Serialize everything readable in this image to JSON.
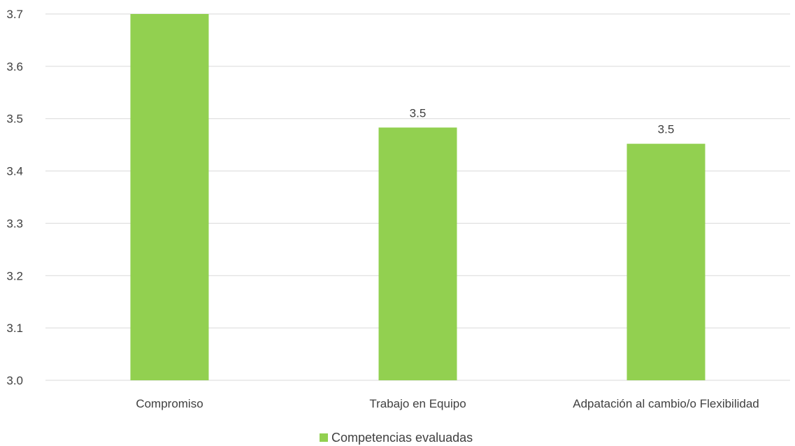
{
  "chart_data": {
    "type": "bar",
    "categories": [
      "Compromiso",
      "Trabajo en Equipo",
      "Adpatación al cambio/o Flexibilidad"
    ],
    "series": [
      {
        "name": "Competencias evaluadas",
        "values": [
          3.7,
          3.483,
          3.452
        ],
        "data_labels": [
          "",
          "3.5",
          "3.5"
        ]
      }
    ],
    "yticks": [
      "3.0",
      "3.1",
      "3.2",
      "3.3",
      "3.4",
      "3.5",
      "3.6",
      "3.7"
    ],
    "ylim": [
      3.0,
      3.7
    ],
    "grid": true,
    "legend_position": "bottom",
    "bar_color": "#92d050"
  }
}
